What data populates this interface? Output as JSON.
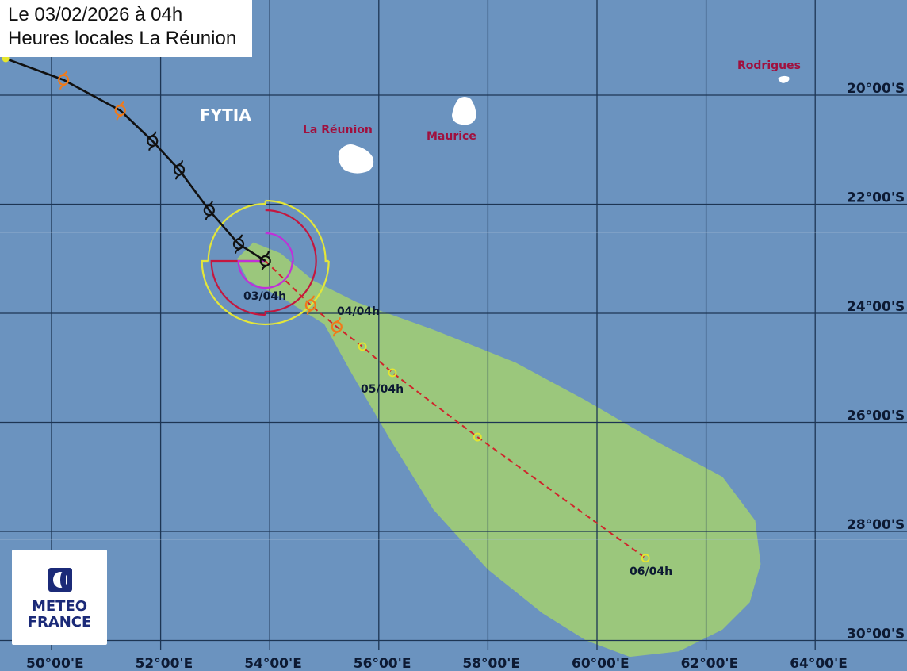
{
  "header": {
    "line1": "Le 03/02/2026 à 04h",
    "line2": "Heures locales La Réunion"
  },
  "storm_name": "FYTIA",
  "places": [
    {
      "name": "La Réunion",
      "lon": 55.5,
      "lat": -21.1
    },
    {
      "name": "Maurice",
      "lon": 57.55,
      "lat": -20.3
    },
    {
      "name": "Rodrigues",
      "lon": 63.4,
      "lat": -19.7
    }
  ],
  "axes": {
    "lon_labels": [
      "50°00'E",
      "52°00'E",
      "54°00'E",
      "56°00'E",
      "58°00'E",
      "60°00'E",
      "62°00'E",
      "64°00'E"
    ],
    "lon_values": [
      50,
      52,
      54,
      56,
      58,
      60,
      62,
      64
    ],
    "lat_labels": [
      "20°00'S",
      "22°00'S",
      "24°00'S",
      "26°00'S",
      "28°00'S",
      "30°00'S"
    ],
    "lat_values": [
      -20,
      -22,
      -24,
      -26,
      -28,
      -30
    ]
  },
  "track_past": [
    {
      "lon": 49.16,
      "lat": -19.33,
      "intensity": "yellow"
    },
    {
      "lon": 50.22,
      "lat": -19.72,
      "intensity": "orange"
    },
    {
      "lon": 51.26,
      "lat": -20.28,
      "intensity": "orange"
    },
    {
      "lon": 51.85,
      "lat": -20.84,
      "intensity": "black"
    },
    {
      "lon": 52.34,
      "lat": -21.37,
      "intensity": "black"
    },
    {
      "lon": 52.89,
      "lat": -22.11,
      "intensity": "black"
    },
    {
      "lon": 53.43,
      "lat": -22.73,
      "intensity": "black"
    },
    {
      "lon": 53.92,
      "lat": -23.04,
      "intensity": "black",
      "label": "03/04h"
    }
  ],
  "track_forecast": [
    {
      "lon": 54.75,
      "lat": -23.85,
      "intensity": "orange"
    },
    {
      "lon": 55.23,
      "lat": -24.25,
      "intensity": "orange",
      "label": "04/04h"
    },
    {
      "lon": 55.7,
      "lat": -24.61,
      "intensity": "yellow"
    },
    {
      "lon": 56.25,
      "lat": -25.09,
      "intensity": "yellow",
      "label": "05/04h"
    },
    {
      "lon": 57.81,
      "lat": -26.27,
      "intensity": "yellow"
    },
    {
      "lon": 60.89,
      "lat": -28.49,
      "intensity": "yellow",
      "label": "06/04h"
    }
  ],
  "colors": {
    "sea": "#6b93bf",
    "grid": "#1d3553",
    "cone": "#9bc77c",
    "track": "#111111",
    "forecast_line": "#d0242b",
    "yellow": "#e6e62e",
    "orange": "#f07a1a",
    "radius_outer": "#e3e63a",
    "radius_mid": "#c4173f",
    "radius_inner": "#c030d8",
    "place_label": "#a0103e"
  },
  "logo": {
    "line1": "METEO",
    "line2": "FRANCE"
  }
}
